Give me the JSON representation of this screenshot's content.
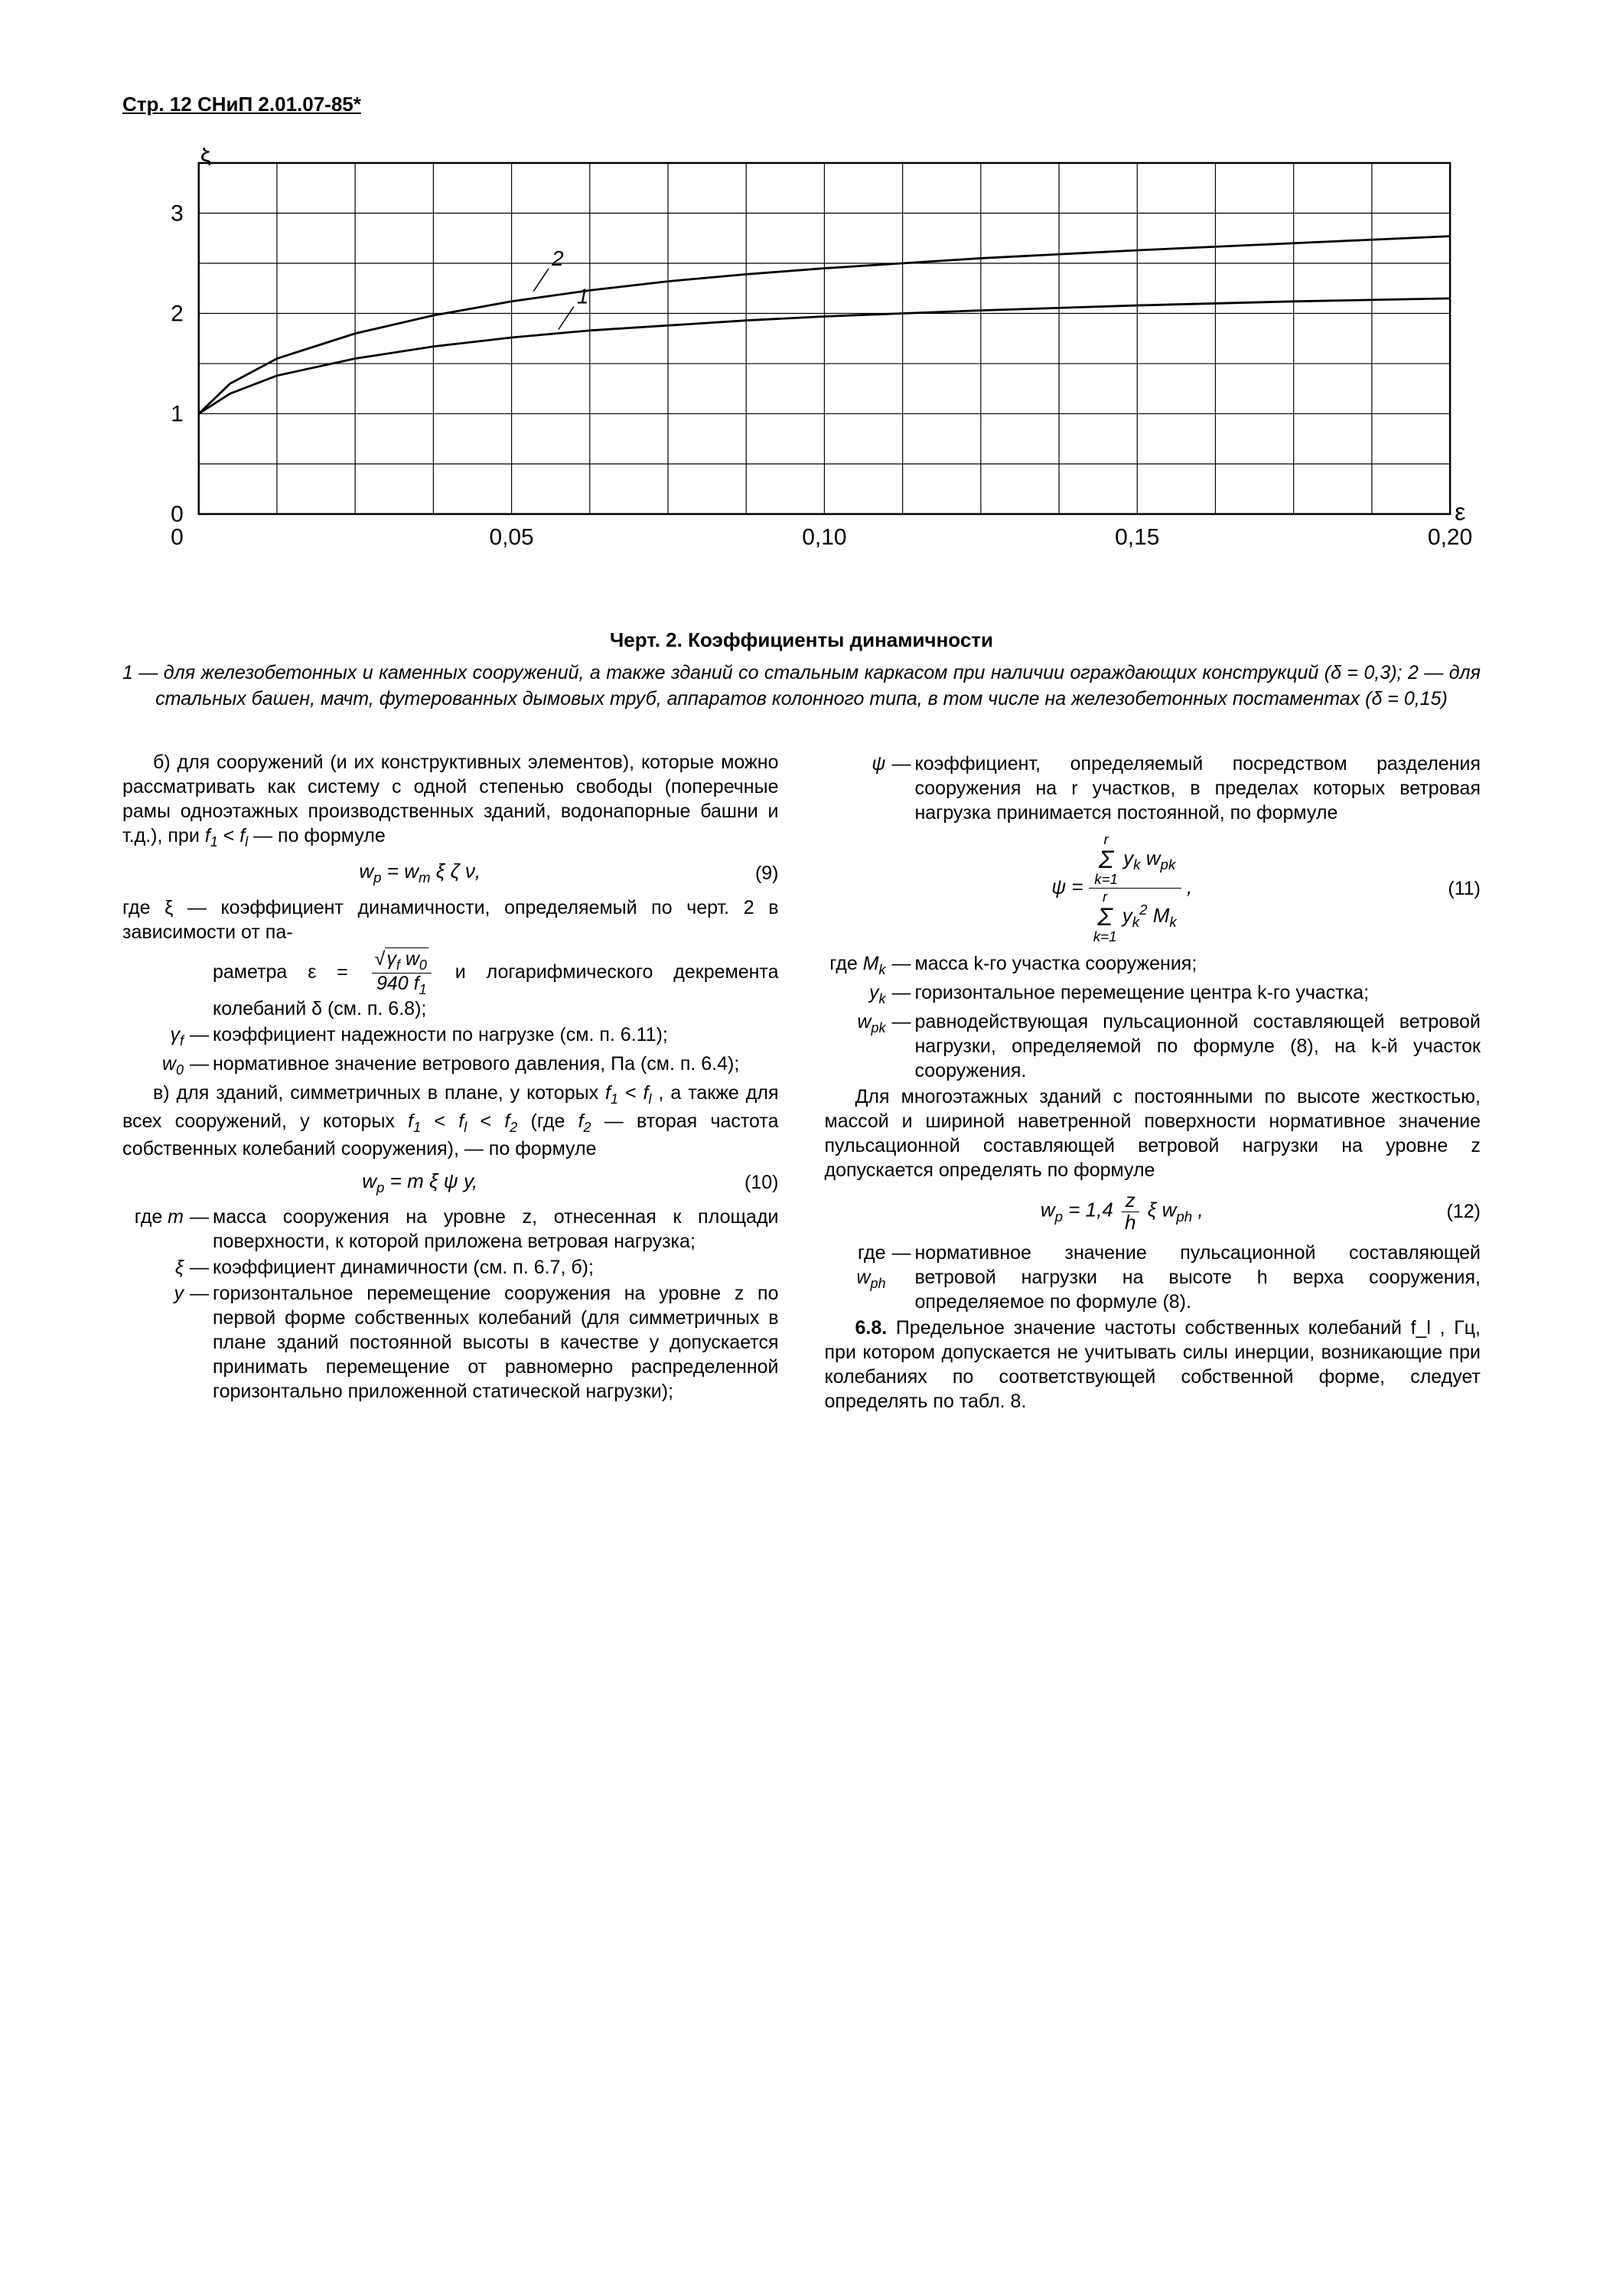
{
  "header": "Стр. 12 СНиП 2.01.07-85*",
  "chart": {
    "type": "line",
    "xlabel": "ε",
    "ylabel": "ξ",
    "xlim": [
      0,
      0.2
    ],
    "ylim": [
      0,
      3.5
    ],
    "xticks": [
      0,
      0.05,
      0.1,
      0.15,
      0.2
    ],
    "xtick_labels": [
      "0",
      "0,05",
      "0,10",
      "0,15",
      "0,20"
    ],
    "yticks": [
      0,
      1,
      2,
      3
    ],
    "grid_x_minor_step": 0.0125,
    "grid_y_minor_step": 0.5,
    "grid_color": "#000000",
    "background_color": "#ffffff",
    "line_width": 2.8,
    "series": [
      {
        "label": "1",
        "points": [
          [
            0.0,
            1.0
          ],
          [
            0.005,
            1.2
          ],
          [
            0.0125,
            1.38
          ],
          [
            0.025,
            1.55
          ],
          [
            0.0375,
            1.67
          ],
          [
            0.05,
            1.76
          ],
          [
            0.0625,
            1.83
          ],
          [
            0.075,
            1.88
          ],
          [
            0.0875,
            1.93
          ],
          [
            0.1,
            1.97
          ],
          [
            0.1125,
            2.0
          ],
          [
            0.125,
            2.03
          ],
          [
            0.15,
            2.08
          ],
          [
            0.175,
            2.12
          ],
          [
            0.2,
            2.15
          ]
        ]
      },
      {
        "label": "2",
        "points": [
          [
            0.0,
            1.0
          ],
          [
            0.005,
            1.3
          ],
          [
            0.0125,
            1.55
          ],
          [
            0.025,
            1.8
          ],
          [
            0.0375,
            1.98
          ],
          [
            0.05,
            2.12
          ],
          [
            0.0625,
            2.23
          ],
          [
            0.075,
            2.32
          ],
          [
            0.0875,
            2.39
          ],
          [
            0.1,
            2.45
          ],
          [
            0.1125,
            2.5
          ],
          [
            0.125,
            2.55
          ],
          [
            0.15,
            2.63
          ],
          [
            0.175,
            2.7
          ],
          [
            0.2,
            2.77
          ]
        ]
      }
    ],
    "curve_label_1_pos": [
      0.0575,
      1.84
    ],
    "curve_label_2_pos": [
      0.0535,
      2.22
    ]
  },
  "caption": "Черт. 2. Коэффициенты динамичности",
  "desc_1_num": "1",
  "desc_1": " — для железобетонных и каменных сооружений, а также зданий со стальным каркасом при наличии ограждающих конструкций (δ = 0,3); ",
  "desc_2_num": "2",
  "desc_2": " — для стальных башен, мачт, футерованных дымовых труб, аппаратов колонного типа, в том числе на железобетонных постаментах (δ = 0,15)",
  "left": {
    "p_b": "б) для сооружений (и их конструктивных элементов), которые можно рассматривать как систему с одной степенью свободы (поперечные рамы одноэтажных производственных зданий, водонапорные башни и т.д.), при ",
    "p_b_tail": " — по формуле",
    "f9": {
      "expr": "w_p = w_m ξ ζ ν,",
      "num": "(9)"
    },
    "xi_lead": "где ξ — коэффициент динамичности, определяемый по черт. 2 в зависимости от па-",
    "xi_tail_a": "раметра ",
    "xi_tail_b": " и логарифмического декремента колебаний δ (см. п. 6.8);",
    "eps_num": "√(γ_f w_0)",
    "eps_den": "940 f_1",
    "gamma_def": "коэффициент надежности по нагрузке (см. п. 6.11);",
    "w0_def": "нормативное значение ветрового давления, Па (см. п. 6.4);",
    "p_v_a": "в) для зданий, симметричных в плане, у которых ",
    "p_v_b": " , а также для всех сооружений, у которых ",
    "p_v_c": " (где ",
    "p_v_d": " — вторая частота собственных колебаний сооружения), — по формуле",
    "f10": {
      "expr": "w_p = m ξ ψ y,",
      "num": "(10)"
    },
    "m_def": "масса сооружения на уровне z, отнесенная к площади поверхности, к которой приложена ветровая нагрузка;",
    "xi2_def": "коэффициент динамичности (см. п. 6.7, б);",
    "y_def": "горизонтальное перемещение сооружения на уровне z по первой форме собственных колебаний (для симметричных в плане зданий постоянной высоты в качестве y допускается принимать перемещение от равномерно распределенной горизонтально приложенной статической нагрузки);"
  },
  "right": {
    "psi_def": "коэффициент, определяемый посредством разделения сооружения на r участков, в пределах которых ветровая нагрузка принимается постоянной, по формуле",
    "f11": {
      "num": "(11)"
    },
    "mk_def": "масса k-го участка сооружения;",
    "yk_def": "горизонтальное перемещение центра k-го участка;",
    "wpk_def": "равнодействующая пульсационной составляющей ветровой нагрузки, определяемой по формуле (8), на k-й участок сооружения.",
    "p_multi": "Для многоэтажных зданий с постоянными по высоте жесткостью, массой и шириной наветренной поверхности нормативное значение пульсационной составляющей ветровой нагрузки на уровне z допускается определять по формуле",
    "f12": {
      "num": "(12)"
    },
    "wph_def": "нормативное значение пульсационной составляющей ветровой нагрузки на высоте h верха сооружения, определяемое по формуле (8).",
    "p68_lead": "6.8.",
    "p68": " Предельное значение частоты собственных колебаний f_l , Гц, при котором допускается не учитывать силы инерции, возникающие при колебаниях по соответствующей собственной форме, следует определять по табл. 8."
  }
}
